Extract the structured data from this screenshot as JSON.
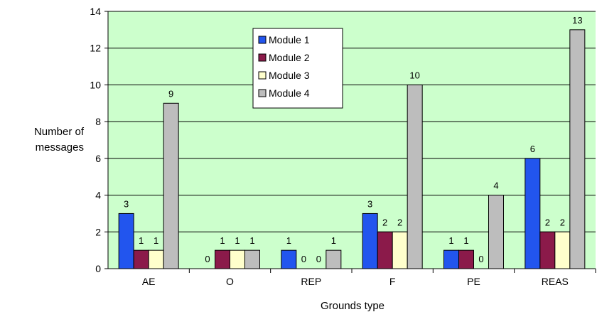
{
  "chart_data": {
    "type": "bar",
    "title": "",
    "xlabel": "Grounds type",
    "ylabel_lines": [
      "Number of",
      "messages"
    ],
    "ylim": [
      0,
      14
    ],
    "yticks": [
      "0",
      "2",
      "4",
      "6",
      "8",
      "10",
      "12",
      "14"
    ],
    "categories": [
      "AE",
      "O",
      "REP",
      "F",
      "PE",
      "REAS"
    ],
    "series": [
      {
        "name": "Module 1",
        "color": "#2255ee",
        "values": [
          3,
          0,
          1,
          3,
          1,
          6
        ]
      },
      {
        "name": "Module 2",
        "color": "#8b1a4a",
        "values": [
          1,
          1,
          0,
          2,
          1,
          2
        ]
      },
      {
        "name": "Module 3",
        "color": "#ffffcc",
        "values": [
          1,
          1,
          0,
          2,
          0,
          2
        ]
      },
      {
        "name": "Module 4",
        "color": "#bdbdbd",
        "values": [
          9,
          1,
          1,
          10,
          4,
          13
        ]
      }
    ],
    "plot_background": "#ccffcc",
    "grid": true,
    "legend_position": "top-center"
  }
}
